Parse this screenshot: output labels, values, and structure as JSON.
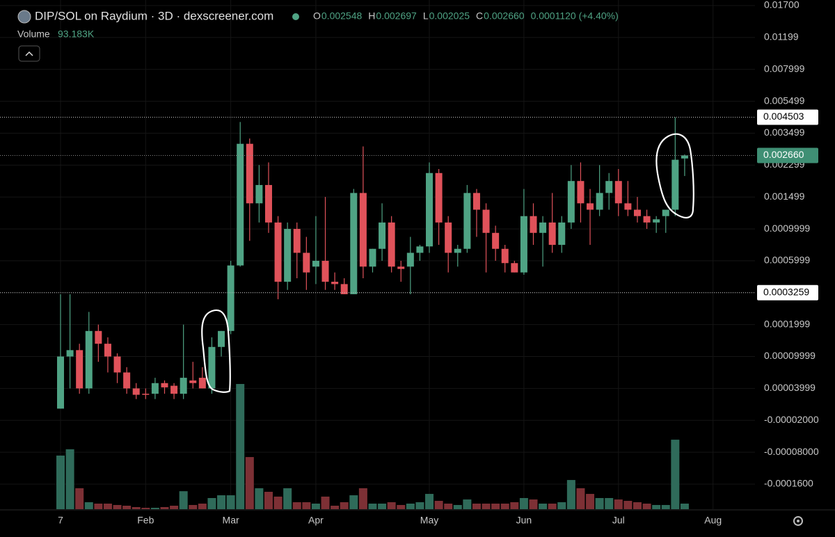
{
  "chart_data": {
    "type": "candlestick",
    "title": "DIP/SOL on Raydium · 3D · dexscreener.com",
    "legend": [
      {
        "key": "O",
        "value": "0.002548"
      },
      {
        "key": "H",
        "value": "0.002697"
      },
      {
        "key": "L",
        "value": "0.002025"
      },
      {
        "key": "C",
        "value": "0.002660"
      }
    ],
    "change": "0.0001120 (+4.40%)",
    "volume_label": "Volume",
    "volume_value": "93.183K",
    "categories": [
      "7",
      null,
      null,
      null,
      null,
      null,
      null,
      null,
      null,
      "Feb",
      null,
      null,
      null,
      null,
      null,
      null,
      null,
      null,
      "Mar",
      null,
      null,
      null,
      null,
      null,
      null,
      null,
      null,
      "Apr",
      null,
      null,
      null,
      null,
      null,
      null,
      null,
      null,
      null,
      null,
      null,
      "May",
      null,
      null,
      null,
      null,
      null,
      null,
      null,
      null,
      null,
      "Jun",
      null,
      null,
      null,
      null,
      null,
      null,
      null,
      null,
      null,
      "Jul",
      null,
      null,
      null,
      null,
      null,
      null,
      null,
      null,
      null,
      "Aug"
    ],
    "open": [
      2e-06,
      0.0001,
      0.00012,
      4e-05,
      0.00018,
      0.00014,
      0.0001,
      7e-05,
      4e-05,
      3e-05,
      3e-05,
      5e-05,
      4.5e-05,
      3e-05,
      5.5e-05,
      6e-05,
      4e-05,
      0.00013,
      0.00018,
      0.00056,
      0.0031,
      0.0014,
      0.0018,
      0.0011,
      0.00042,
      0.001,
      0.0007,
      0.00055,
      0.0006,
      0.00042,
      0.0004,
      0.00032,
      0.0016,
      0.00055,
      0.00075,
      0.0011,
      0.00055,
      0.00055,
      0.0007,
      0.00078,
      0.0021,
      0.0011,
      0.0007,
      0.00075,
      0.0016,
      0.0013,
      0.00095,
      0.00075,
      0.00058,
      0.0005,
      0.0012,
      0.00095,
      0.0011,
      0.0008,
      0.0011,
      0.0019,
      0.0014,
      0.0013,
      0.0016,
      0.0019,
      0.0014,
      0.0013,
      0.0012,
      0.0011,
      0.0012,
      0.0013,
      0.002548,
      null,
      null,
      null
    ],
    "high": [
      0.00032,
      0.00032,
      0.00014,
      0.00025,
      0.0002,
      0.00016,
      0.00011,
      8e-05,
      5e-05,
      4e-05,
      6e-05,
      5.5e-05,
      5e-05,
      0.0002,
      9e-05,
      8e-05,
      0.00016,
      0.00018,
      0.0006,
      0.0042,
      0.0033,
      0.0023,
      0.0024,
      0.0012,
      0.0011,
      0.0011,
      0.0009,
      0.0012,
      0.0015,
      0.0005,
      0.00045,
      0.0017,
      0.003,
      0.00075,
      0.0014,
      0.0012,
      0.0006,
      0.0009,
      0.0008,
      0.0024,
      0.0022,
      0.0012,
      0.0008,
      0.0018,
      0.0017,
      0.0014,
      0.00105,
      0.0008,
      0.0006,
      0.0017,
      0.0014,
      0.0012,
      0.0016,
      0.0012,
      0.0023,
      0.0024,
      0.0017,
      0.0023,
      0.0021,
      0.0022,
      0.0019,
      0.0015,
      0.0013,
      0.0012,
      0.0013,
      0.004503,
      0.002697,
      null,
      null,
      null
    ],
    "low": [
      2e-06,
      4e-05,
      3e-05,
      3e-05,
      9e-05,
      7e-05,
      5e-05,
      3e-05,
      2e-05,
      2e-05,
      2e-05,
      3e-05,
      2e-05,
      2e-05,
      4e-05,
      4e-05,
      3e-05,
      0.0001,
      0.00017,
      0.00055,
      0.00085,
      0.0011,
      0.00095,
      0.0003,
      0.00035,
      0.00045,
      0.00035,
      0.0004,
      0.00035,
      0.00035,
      0.00032,
      0.00032,
      0.00045,
      0.0005,
      0.0006,
      0.0005,
      0.00042,
      0.00032,
      0.0006,
      0.0007,
      0.0008,
      0.0005,
      0.00055,
      0.0007,
      0.0009,
      0.0005,
      0.0006,
      0.0005,
      0.0005,
      0.00048,
      0.0008,
      0.00055,
      0.0007,
      0.0007,
      0.001,
      0.0011,
      0.0008,
      0.0012,
      0.0013,
      0.0012,
      0.0012,
      0.0011,
      0.001,
      0.00095,
      0.00095,
      0.0012,
      0.002025,
      null,
      null,
      null
    ],
    "close": [
      0.0001,
      0.00012,
      4e-05,
      0.00018,
      0.00014,
      0.0001,
      7e-05,
      4e-05,
      2.8e-05,
      2.8e-05,
      5e-05,
      4.2e-05,
      3e-05,
      6e-05,
      5e-05,
      4e-05,
      0.00013,
      0.00018,
      0.00056,
      0.0031,
      0.0014,
      0.0018,
      0.0011,
      0.00042,
      0.001,
      0.0007,
      0.0005,
      0.0006,
      0.00042,
      0.0004,
      0.00032,
      0.0016,
      0.00055,
      0.00075,
      0.0011,
      0.00055,
      0.00053,
      0.0007,
      0.00078,
      0.0021,
      0.0011,
      0.0007,
      0.00075,
      0.0016,
      0.0013,
      0.00095,
      0.00075,
      0.00058,
      0.0005,
      0.0012,
      0.00095,
      0.0011,
      0.0008,
      0.0011,
      0.0019,
      0.0014,
      0.0013,
      0.0016,
      0.0019,
      0.0014,
      0.0013,
      0.0012,
      0.0011,
      0.00115,
      0.0013,
      0.0025,
      0.00266,
      null,
      null,
      null
    ],
    "volume": [
      895000,
      1000000,
      350000,
      116000,
      93000,
      93000,
      70000,
      58000,
      35000,
      23000,
      23000,
      35000,
      58000,
      300000,
      70000,
      93000,
      186000,
      232000,
      232000,
      2090000,
      870000,
      350000,
      290000,
      210000,
      350000,
      116000,
      116000,
      93000,
      210000,
      58000,
      116000,
      232000,
      350000,
      93000,
      93000,
      116000,
      70000,
      93000,
      116000,
      255000,
      139000,
      93000,
      70000,
      162000,
      93000,
      93000,
      93000,
      93000,
      116000,
      186000,
      162000,
      93000,
      93000,
      116000,
      487000,
      350000,
      255000,
      186000,
      186000,
      162000,
      139000,
      116000,
      93000,
      70000,
      70000,
      1160000,
      93183,
      null,
      null,
      null
    ],
    "up_color": "#4fa384",
    "down_color": "#e0525a",
    "up_volume_color": "#2f6b5a",
    "down_volume_color": "#7d3035",
    "scale": "piecewise",
    "ylim": [
      -0.00016,
      0.017
    ],
    "yticks": [
      {
        "value": 0.017,
        "label": "0.01700"
      },
      0.01199,
      0.007999,
      0.005499,
      0.003499,
      0.002299,
      0.001499,
      0.0009999,
      0.0005999,
      0.0003259,
      0.0001999,
      9.999e-05,
      3.999e-05,
      {
        "value": -2e-05,
        "label": "-0.00002000"
      },
      {
        "value": -8e-05,
        "label": "-0.00008000"
      },
      {
        "value": -0.00016,
        "label": "-0.0001600"
      }
    ],
    "price_lines": [
      {
        "value": 0.004503,
        "label": "0.004503"
      },
      {
        "value": 0.0003259,
        "label": "0.0003259"
      },
      {
        "value": 0.00266,
        "label": "0.002660",
        "current": true
      }
    ],
    "grid": true
  }
}
